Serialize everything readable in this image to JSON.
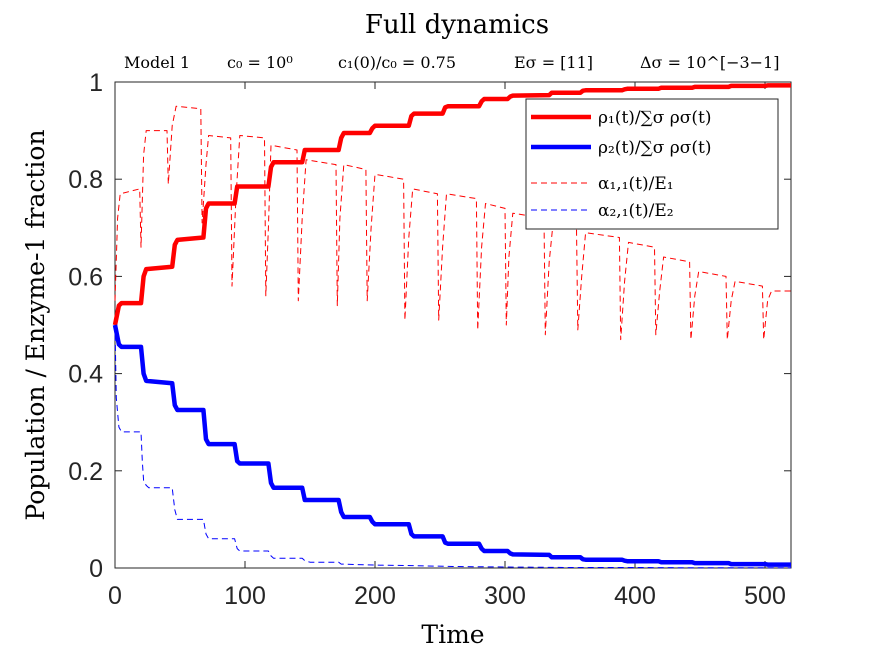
{
  "chart_data": {
    "type": "line",
    "title": "Full dynamics",
    "subtitle_parts": [
      "Model 1",
      "c₀ = 10⁰",
      "c₁(0)/c₀ = 0.75",
      "Eσ = [11]",
      "Δσ = 10^[−3−1]"
    ],
    "xlabel": "Time",
    "ylabel": "Population / Enzyme-1 fraction",
    "xlim": [
      0,
      520
    ],
    "ylim": [
      0,
      1
    ],
    "xticks": [
      0,
      100,
      200,
      300,
      400,
      500
    ],
    "yticks": [
      0,
      0.2,
      0.4,
      0.6,
      0.8,
      1
    ],
    "legend_position": "top-right",
    "series": [
      {
        "name": "ρ₁(t)/∑σ ρσ(t)",
        "color": "#ff0000",
        "style": "solid-thick",
        "x": [
          0,
          3,
          5,
          20,
          22,
          24,
          44,
          46,
          48,
          68,
          70,
          72,
          92,
          94,
          96,
          118,
          120,
          122,
          144,
          146,
          148,
          172,
          174,
          176,
          196,
          198,
          200,
          226,
          228,
          230,
          252,
          254,
          256,
          280,
          282,
          284,
          302,
          304,
          306,
          334,
          336,
          338,
          358,
          360,
          362,
          390,
          392,
          394,
          418,
          420,
          422,
          444,
          446,
          448,
          472,
          474,
          476,
          500,
          502,
          504,
          520
        ],
        "y": [
          0.5,
          0.54,
          0.545,
          0.545,
          0.6,
          0.615,
          0.62,
          0.665,
          0.675,
          0.68,
          0.74,
          0.75,
          0.75,
          0.785,
          0.785,
          0.785,
          0.825,
          0.835,
          0.835,
          0.86,
          0.86,
          0.86,
          0.885,
          0.895,
          0.895,
          0.905,
          0.91,
          0.91,
          0.93,
          0.935,
          0.935,
          0.948,
          0.95,
          0.95,
          0.96,
          0.965,
          0.965,
          0.97,
          0.972,
          0.973,
          0.978,
          0.978,
          0.978,
          0.982,
          0.983,
          0.983,
          0.985,
          0.986,
          0.986,
          0.988,
          0.988,
          0.988,
          0.99,
          0.99,
          0.99,
          0.992,
          0.992,
          0.992,
          0.993,
          0.993,
          0.993
        ]
      },
      {
        "name": "ρ₂(t)/∑σ ρσ(t)",
        "color": "#0000ff",
        "style": "solid-thick",
        "x": [
          0,
          3,
          5,
          20,
          22,
          24,
          44,
          46,
          48,
          68,
          70,
          72,
          92,
          94,
          96,
          118,
          120,
          122,
          144,
          146,
          148,
          172,
          174,
          176,
          196,
          198,
          200,
          226,
          228,
          230,
          252,
          254,
          256,
          280,
          282,
          284,
          302,
          304,
          306,
          334,
          336,
          338,
          358,
          360,
          362,
          390,
          392,
          394,
          418,
          420,
          422,
          444,
          446,
          448,
          472,
          474,
          476,
          500,
          502,
          504,
          520
        ],
        "y": [
          0.5,
          0.46,
          0.455,
          0.455,
          0.4,
          0.385,
          0.38,
          0.335,
          0.325,
          0.325,
          0.265,
          0.255,
          0.255,
          0.22,
          0.215,
          0.215,
          0.175,
          0.165,
          0.165,
          0.14,
          0.14,
          0.14,
          0.115,
          0.105,
          0.105,
          0.095,
          0.09,
          0.09,
          0.07,
          0.065,
          0.065,
          0.052,
          0.05,
          0.05,
          0.04,
          0.035,
          0.035,
          0.03,
          0.028,
          0.027,
          0.022,
          0.022,
          0.022,
          0.018,
          0.017,
          0.017,
          0.015,
          0.014,
          0.014,
          0.012,
          0.012,
          0.012,
          0.01,
          0.01,
          0.01,
          0.008,
          0.008,
          0.008,
          0.007,
          0.007,
          0.007
        ]
      },
      {
        "name": "α₁,₁(t)/E₁",
        "color": "#ff0000",
        "style": "dashed-thin",
        "x": [
          0,
          2,
          4,
          19,
          20,
          22,
          24,
          40,
          41,
          44,
          47,
          66,
          67,
          70,
          72,
          89,
          90,
          93,
          96,
          115,
          116,
          118,
          120,
          140,
          141,
          144,
          147,
          170,
          171,
          173,
          176,
          193,
          194,
          197,
          200,
          222,
          223,
          226,
          229,
          248,
          249,
          252,
          255,
          278,
          279,
          282,
          285,
          300,
          301,
          303,
          306,
          330,
          331,
          334,
          337,
          355,
          356,
          359,
          362,
          388,
          389,
          392,
          395,
          415,
          416,
          419,
          422,
          442,
          443,
          446,
          449,
          470,
          471,
          474,
          477,
          498,
          499,
          502,
          505,
          520
        ],
        "y": [
          0.55,
          0.72,
          0.77,
          0.78,
          0.66,
          0.85,
          0.9,
          0.9,
          0.79,
          0.91,
          0.95,
          0.945,
          0.71,
          0.83,
          0.89,
          0.885,
          0.58,
          0.76,
          0.89,
          0.885,
          0.56,
          0.7,
          0.87,
          0.86,
          0.55,
          0.72,
          0.84,
          0.83,
          0.54,
          0.72,
          0.83,
          0.82,
          0.55,
          0.7,
          0.81,
          0.8,
          0.51,
          0.68,
          0.78,
          0.77,
          0.51,
          0.66,
          0.77,
          0.76,
          0.49,
          0.66,
          0.75,
          0.74,
          0.5,
          0.64,
          0.73,
          0.72,
          0.48,
          0.63,
          0.71,
          0.7,
          0.49,
          0.6,
          0.69,
          0.68,
          0.47,
          0.59,
          0.67,
          0.66,
          0.48,
          0.57,
          0.64,
          0.63,
          0.47,
          0.56,
          0.61,
          0.6,
          0.47,
          0.55,
          0.59,
          0.58,
          0.47,
          0.55,
          0.57,
          0.57
        ]
      },
      {
        "name": "α₂,₁(t)/E₂",
        "color": "#0000ff",
        "style": "dashed-thin",
        "x": [
          0,
          1,
          3,
          5,
          20,
          21,
          22,
          24,
          26,
          44,
          46,
          48,
          68,
          70,
          72,
          92,
          94,
          96,
          118,
          120,
          122,
          144,
          146,
          150,
          172,
          174,
          200,
          228,
          260,
          300,
          350,
          400,
          450,
          520
        ],
        "y": [
          0.5,
          0.35,
          0.29,
          0.28,
          0.28,
          0.22,
          0.18,
          0.17,
          0.165,
          0.165,
          0.12,
          0.1,
          0.1,
          0.07,
          0.06,
          0.06,
          0.04,
          0.035,
          0.035,
          0.025,
          0.02,
          0.02,
          0.015,
          0.012,
          0.012,
          0.008,
          0.006,
          0.005,
          0.003,
          0.002,
          0.001,
          0.001,
          0.0005,
          0.0005
        ]
      }
    ]
  }
}
